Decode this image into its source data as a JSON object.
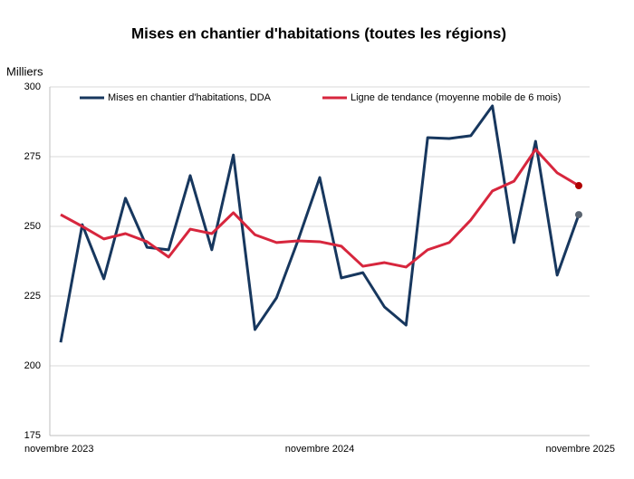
{
  "chart_data": {
    "type": "line",
    "title": "Mises en chantier d'habitations (toutes les régions)",
    "y_label": "Milliers",
    "categories": [
      "novembre 2023",
      null,
      null,
      null,
      null,
      null,
      null,
      null,
      null,
      null,
      null,
      null,
      "novembre 2024",
      null,
      null,
      null,
      null,
      null,
      null,
      null,
      null,
      null,
      null,
      null,
      "novembre 2025"
    ],
    "series": [
      {
        "name": "Mises en chantier d'habitations, DDA",
        "color": "#17375e",
        "values": [
          208.4,
          250.6,
          231.2,
          260.1,
          242.5,
          241.6,
          268.2,
          241.6,
          275.6,
          213.0,
          224.4,
          245.1,
          267.5,
          231.5,
          233.4,
          221.1,
          214.6,
          281.8,
          281.5,
          282.5,
          293.2,
          244.2,
          280.5,
          232.5,
          254.2
        ]
      },
      {
        "name": "Ligne de tendance (moyenne mobile de 6 mois)",
        "color": "#d7263d",
        "values": [
          254.2,
          250,
          245.5,
          247.4,
          244.5,
          239,
          249,
          247.4,
          254.9,
          247,
          244.2,
          244.8,
          244.5,
          242.9,
          235.7,
          237,
          235.4,
          241.6,
          244.2,
          252.3,
          262.7,
          266.2,
          277.6,
          269.2,
          264.6
        ]
      }
    ],
    "ylim": [
      175,
      300
    ],
    "yticks": [
      175,
      200,
      225,
      250,
      275,
      300
    ],
    "grid": true,
    "legend": "top"
  }
}
